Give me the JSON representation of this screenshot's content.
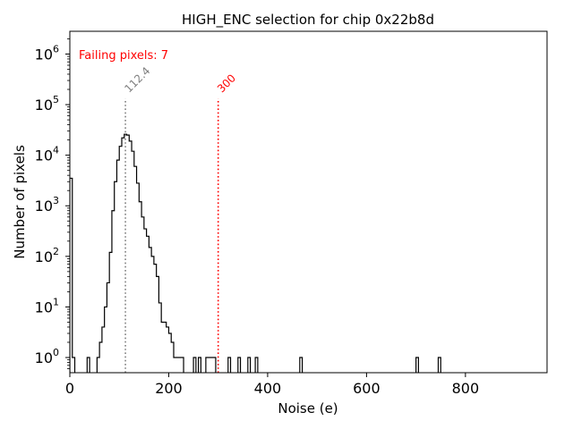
{
  "chart_data": {
    "type": "histogram",
    "title": "HIGH_ENC selection for chip 0x22b8d",
    "xlabel": "Noise (e)",
    "ylabel": "Number of pixels",
    "xlim": [
      0,
      965
    ],
    "ylim_log10": [
      -0.3,
      6.45
    ],
    "yscale": "log",
    "x_ticks": [
      {
        "value": 0,
        "label": "0"
      },
      {
        "value": 200,
        "label": "200"
      },
      {
        "value": 400,
        "label": "400"
      },
      {
        "value": 600,
        "label": "600"
      },
      {
        "value": 800,
        "label": "800"
      }
    ],
    "y_ticks": [
      {
        "exp": 0,
        "base": "10",
        "sup": "0"
      },
      {
        "exp": 1,
        "base": "10",
        "sup": "1"
      },
      {
        "exp": 2,
        "base": "10",
        "sup": "2"
      },
      {
        "exp": 3,
        "base": "10",
        "sup": "3"
      },
      {
        "exp": 4,
        "base": "10",
        "sup": "4"
      },
      {
        "exp": 5,
        "base": "10",
        "sup": "5"
      },
      {
        "exp": 6,
        "base": "10",
        "sup": "6"
      }
    ],
    "bin_width": 5,
    "bins": [
      [
        0,
        3500
      ],
      [
        5,
        1
      ],
      [
        35,
        1
      ],
      [
        55,
        1
      ],
      [
        60,
        2
      ],
      [
        65,
        4
      ],
      [
        70,
        10
      ],
      [
        75,
        30
      ],
      [
        80,
        120
      ],
      [
        85,
        800
      ],
      [
        90,
        3000
      ],
      [
        95,
        8000
      ],
      [
        100,
        15000
      ],
      [
        105,
        22000
      ],
      [
        110,
        26000
      ],
      [
        115,
        25000
      ],
      [
        120,
        19000
      ],
      [
        125,
        12000
      ],
      [
        130,
        6000
      ],
      [
        135,
        2800
      ],
      [
        140,
        1200
      ],
      [
        145,
        600
      ],
      [
        150,
        350
      ],
      [
        155,
        250
      ],
      [
        160,
        150
      ],
      [
        165,
        100
      ],
      [
        170,
        70
      ],
      [
        175,
        40
      ],
      [
        180,
        12
      ],
      [
        185,
        5
      ],
      [
        190,
        5
      ],
      [
        195,
        4
      ],
      [
        200,
        3
      ],
      [
        205,
        2
      ],
      [
        210,
        1
      ],
      [
        215,
        1
      ],
      [
        220,
        1
      ],
      [
        225,
        1
      ],
      [
        250,
        1
      ],
      [
        260,
        1
      ],
      [
        275,
        1
      ],
      [
        280,
        1
      ],
      [
        285,
        1
      ],
      [
        290,
        1
      ],
      [
        320,
        1
      ],
      [
        340,
        1
      ],
      [
        360,
        1
      ],
      [
        375,
        1
      ],
      [
        465,
        1
      ],
      [
        700,
        1
      ],
      [
        745,
        1
      ]
    ],
    "annotations": [
      {
        "x": 112.4,
        "label": "112.4",
        "color": "#808080",
        "line_top": 5.12
      },
      {
        "x": 300,
        "label": "300",
        "color": "#ff0000",
        "line_top": 5.12
      }
    ],
    "failing_text": "Failing pixels: 7",
    "failing_color": "#ff0000"
  }
}
